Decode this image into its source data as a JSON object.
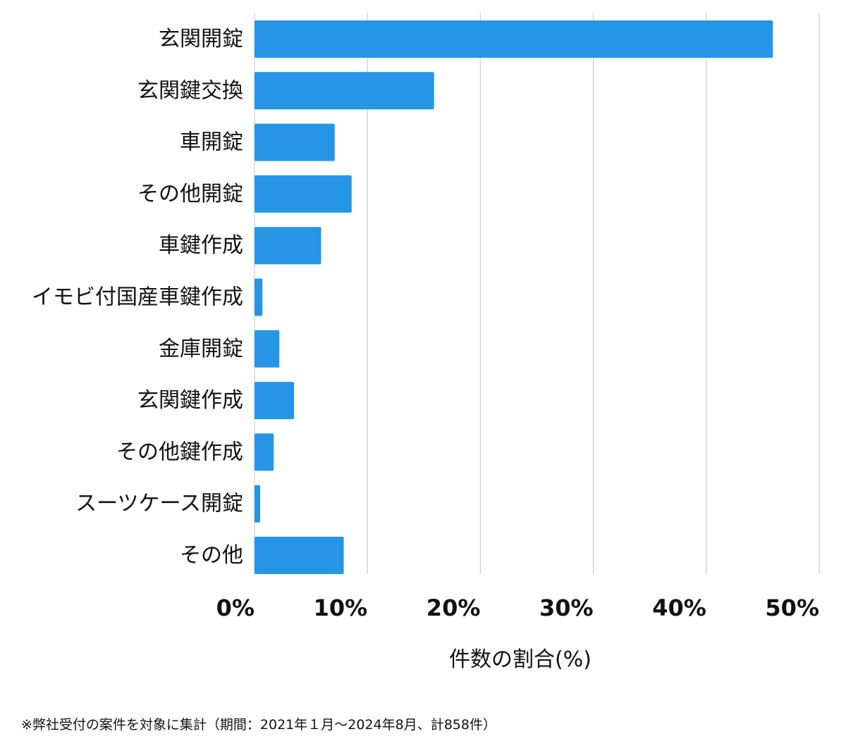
{
  "chart_data": {
    "type": "bar",
    "orientation": "horizontal",
    "categories": [
      "玄関開錠",
      "玄関鍵交換",
      "車開錠",
      "その他開錠",
      "車鍵作成",
      "イモビ付国産車鍵作成",
      "金庫開錠",
      "玄関鍵作成",
      "その他鍵作成",
      "スーツケース開錠",
      "その他"
    ],
    "values": [
      45.9,
      15.9,
      7.1,
      8.6,
      5.9,
      0.7,
      2.2,
      3.5,
      1.7,
      0.5,
      7.9
    ],
    "xlim": [
      0,
      50
    ],
    "xticks": [
      0,
      10,
      20,
      30,
      40,
      50
    ],
    "xtick_labels": [
      "0%",
      "10%",
      "20%",
      "30%",
      "40%",
      "50%"
    ],
    "xlabel": "件数の割合(%)",
    "ylabel": "",
    "title": "",
    "grid": "vertical",
    "bar_color": "#2695e6",
    "grid_color": "#cccccc"
  },
  "footnote": "※弊社受付の案件を対象に集計（期間：2021年１月〜2024年8月、計858件）"
}
